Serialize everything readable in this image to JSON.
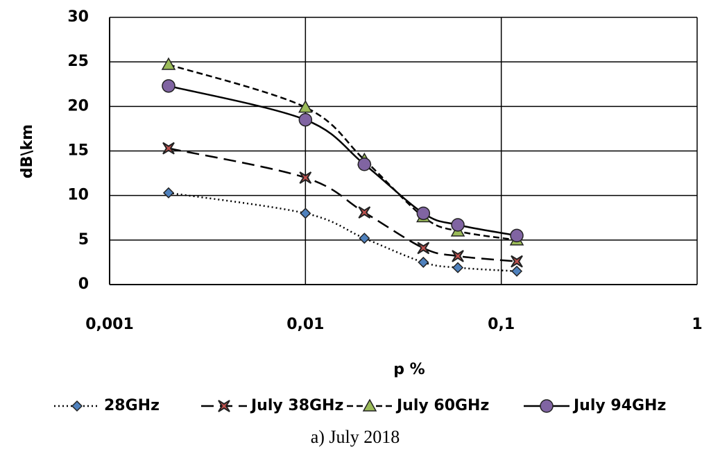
{
  "chart_data": {
    "type": "line",
    "caption": "a) July 2018",
    "x_label": "p %",
    "y_label": "dB\\km",
    "xscale": "log",
    "grid": true,
    "legend": "bottom",
    "x": [
      0.002,
      0.01,
      0.02,
      0.04,
      0.06,
      0.12
    ],
    "xlim": [
      0.001,
      1
    ],
    "xticks": [
      {
        "value": 0.001,
        "label": "0,001"
      },
      {
        "value": 0.01,
        "label": "0,01"
      },
      {
        "value": 0.1,
        "label": "0,1"
      },
      1
    ],
    "ylim": [
      0,
      30
    ],
    "yticks": [
      0,
      5,
      10,
      15,
      20,
      25,
      30
    ],
    "series": [
      {
        "name": "28GHz",
        "color": "#4f81bd",
        "line_style": "dotted",
        "marker": "diamond",
        "values": [
          10.3,
          8,
          5.2,
          2.5,
          1.9,
          1.5
        ]
      },
      {
        "name": "July 38GHz",
        "color": "#c0504d",
        "line_style": "dashed",
        "marker": "x",
        "values": [
          15.3,
          12,
          8.1,
          4.1,
          3.2,
          2.6
        ]
      },
      {
        "name": "July 60GHz",
        "color": "#9bbb59",
        "line_style": "short-dashed",
        "marker": "triangle",
        "values": [
          24.7,
          19.9,
          14,
          7.6,
          6,
          5
        ]
      },
      {
        "name": "July 94GHz",
        "color": "#8064a2",
        "line_style": "solid",
        "marker": "circle",
        "values": [
          22.3,
          18.5,
          13.5,
          8,
          6.7,
          5.5
        ]
      }
    ]
  }
}
